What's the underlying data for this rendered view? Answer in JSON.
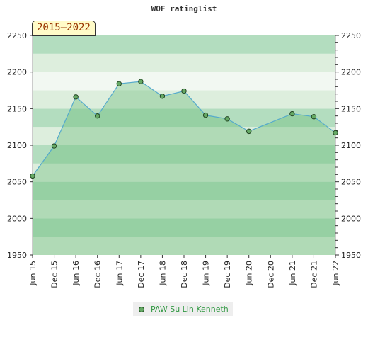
{
  "chart_data": {
    "type": "area",
    "title": "WOF ratinglist",
    "period": "2015–2022",
    "x": [
      "Jun 15",
      "Dec 15",
      "Jun 16",
      "Dec 16",
      "Jun 17",
      "Dec 17",
      "Jun 18",
      "Dec 18",
      "Jun 19",
      "Dec 19",
      "Jun 20",
      "Dec 20",
      "Jun 21",
      "Dec 21",
      "Jun 22"
    ],
    "series": [
      {
        "name": "PAW Su Lin Kenneth",
        "values": [
          2058,
          2099,
          2166,
          2140,
          2184,
          2187,
          2167,
          2174,
          2141,
          2136,
          2119,
          null,
          2143,
          2139,
          2117
        ]
      }
    ],
    "ylim": [
      1950,
      2250
    ],
    "yticks": [
      1950,
      2000,
      2050,
      2100,
      2150,
      2200,
      2250
    ],
    "y_axis_both_sides": true,
    "grid": true,
    "legend_position": "bottom",
    "colors": {
      "band_light": "#ddeedd",
      "band_dark": "#b3ddbf",
      "band_faint": "#f2f8f2",
      "area_fill": "#66bb77",
      "line": "#55aacc",
      "marker_fill": "#66aa66",
      "marker_stroke": "#224422",
      "legend_text": "#339944"
    }
  }
}
